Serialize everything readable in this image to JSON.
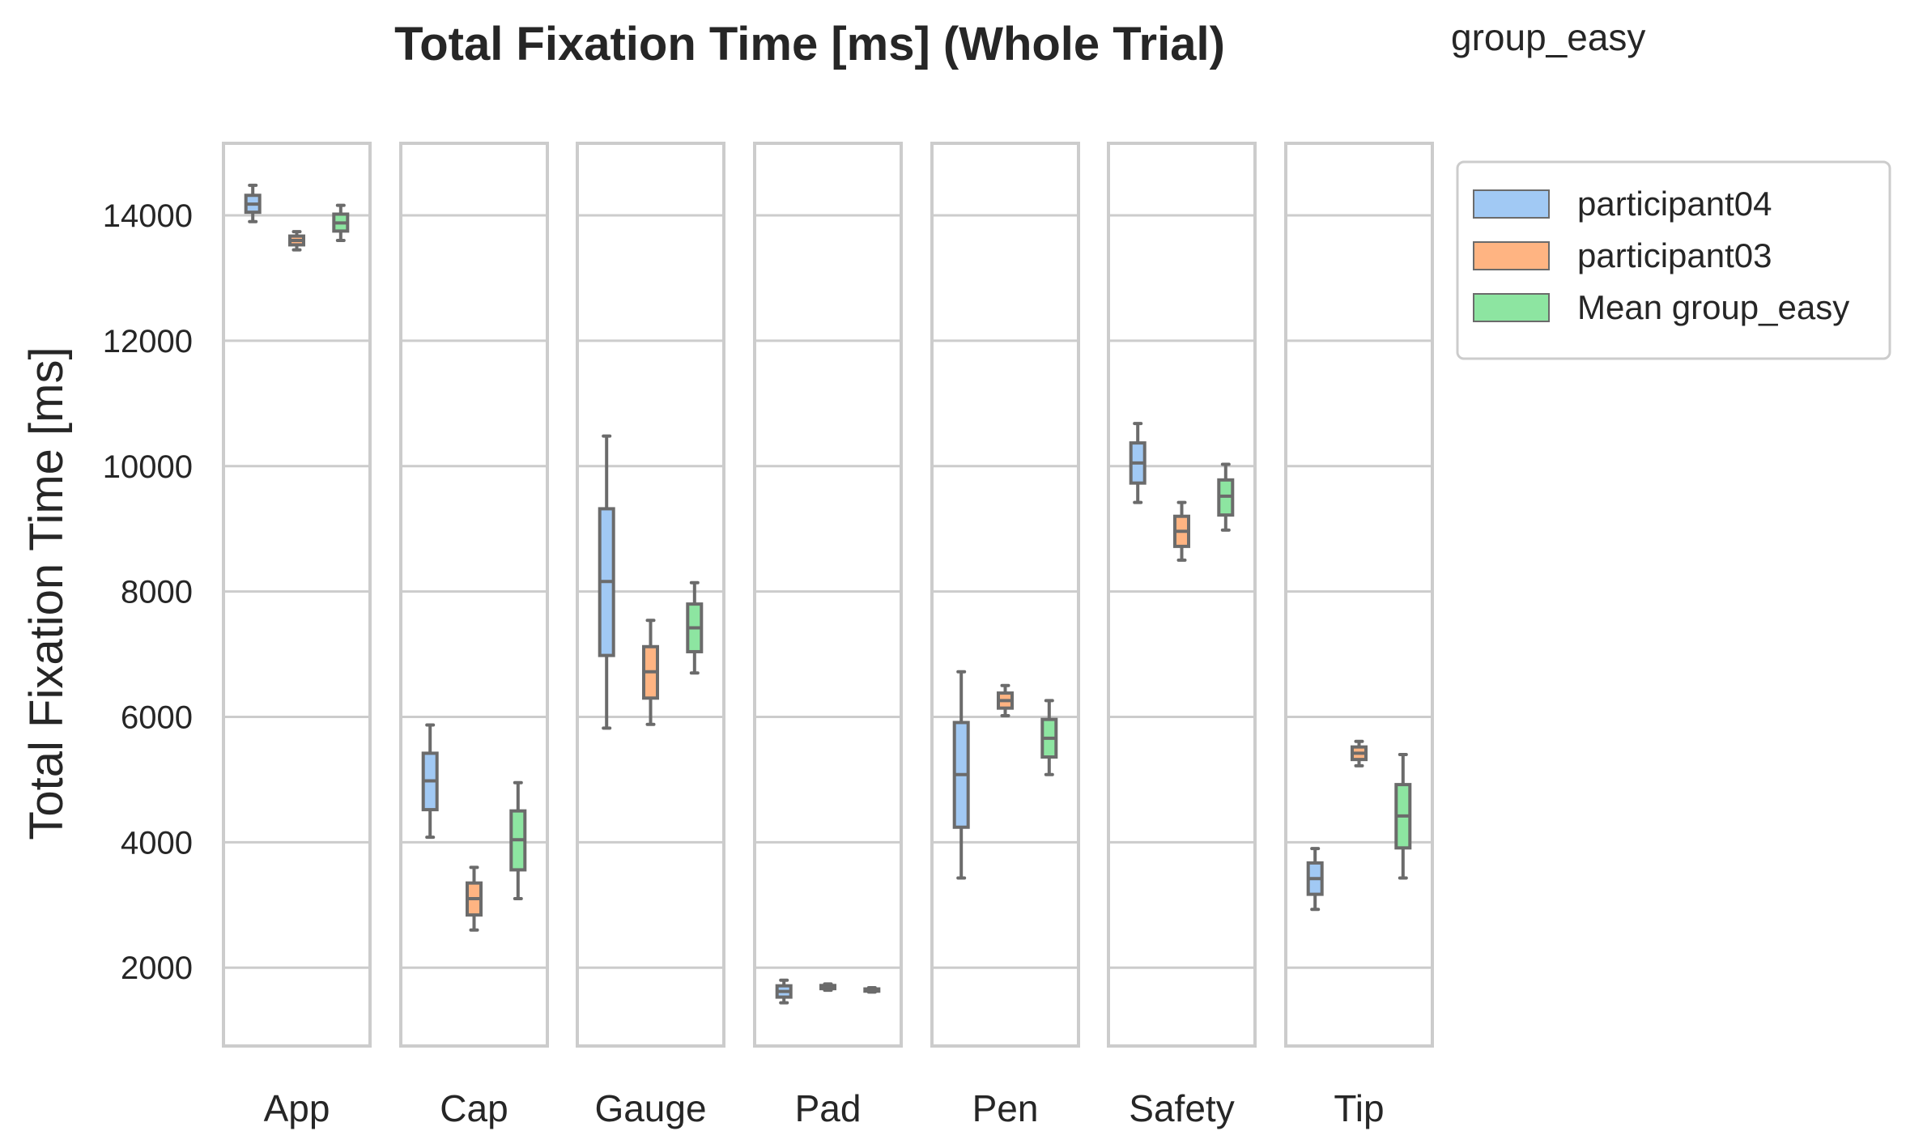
{
  "chart_data": {
    "type": "box",
    "title": "Total Fixation Time [ms] (Whole Trial)",
    "subtitle": "group_easy",
    "ylabel": "Total Fixation Time [ms]",
    "xlabel": "",
    "ylim": [
      750,
      15150
    ],
    "yticks": [
      2000,
      4000,
      6000,
      8000,
      10000,
      12000,
      14000
    ],
    "grid": true,
    "legend_position": "outside-right",
    "categories": [
      "App",
      "Cap",
      "Gauge",
      "Pad",
      "Pen",
      "Safety",
      "Tip"
    ],
    "series": [
      {
        "name": "participant04",
        "color": "#a1c9f4",
        "boxes": [
          {
            "min": 13900,
            "q1": 14050,
            "median": 14180,
            "q3": 14320,
            "max": 14480
          },
          {
            "min": 4080,
            "q1": 4520,
            "median": 4980,
            "q3": 5420,
            "max": 5870
          },
          {
            "min": 5820,
            "q1": 6980,
            "median": 8160,
            "q3": 9320,
            "max": 10480
          },
          {
            "min": 1440,
            "q1": 1530,
            "median": 1620,
            "q3": 1710,
            "max": 1800
          },
          {
            "min": 3430,
            "q1": 4240,
            "median": 5080,
            "q3": 5910,
            "max": 6720
          },
          {
            "min": 9420,
            "q1": 9730,
            "median": 10050,
            "q3": 10370,
            "max": 10680
          },
          {
            "min": 2930,
            "q1": 3170,
            "median": 3420,
            "q3": 3670,
            "max": 3900
          }
        ]
      },
      {
        "name": "participant03",
        "color": "#ffb482",
        "boxes": [
          {
            "min": 13450,
            "q1": 13530,
            "median": 13600,
            "q3": 13670,
            "max": 13740
          },
          {
            "min": 2600,
            "q1": 2840,
            "median": 3100,
            "q3": 3350,
            "max": 3600
          },
          {
            "min": 5880,
            "q1": 6300,
            "median": 6720,
            "q3": 7120,
            "max": 7540
          },
          {
            "min": 1640,
            "q1": 1665,
            "median": 1690,
            "q3": 1715,
            "max": 1740
          },
          {
            "min": 6020,
            "q1": 6140,
            "median": 6260,
            "q3": 6380,
            "max": 6500
          },
          {
            "min": 8500,
            "q1": 8720,
            "median": 8960,
            "q3": 9200,
            "max": 9420
          },
          {
            "min": 5220,
            "q1": 5320,
            "median": 5420,
            "q3": 5520,
            "max": 5610
          }
        ]
      },
      {
        "name": "Mean group_easy",
        "color": "#8de5a1",
        "boxes": [
          {
            "min": 13600,
            "q1": 13750,
            "median": 13880,
            "q3": 14020,
            "max": 14160
          },
          {
            "min": 3100,
            "q1": 3560,
            "median": 4040,
            "q3": 4500,
            "max": 4950
          },
          {
            "min": 6700,
            "q1": 7040,
            "median": 7420,
            "q3": 7800,
            "max": 8140
          },
          {
            "min": 1610,
            "q1": 1625,
            "median": 1640,
            "q3": 1660,
            "max": 1680
          },
          {
            "min": 5080,
            "q1": 5360,
            "median": 5660,
            "q3": 5960,
            "max": 6260
          },
          {
            "min": 8980,
            "q1": 9220,
            "median": 9520,
            "q3": 9780,
            "max": 10030
          },
          {
            "min": 3430,
            "q1": 3910,
            "median": 4420,
            "q3": 4920,
            "max": 5400
          }
        ]
      }
    ]
  }
}
